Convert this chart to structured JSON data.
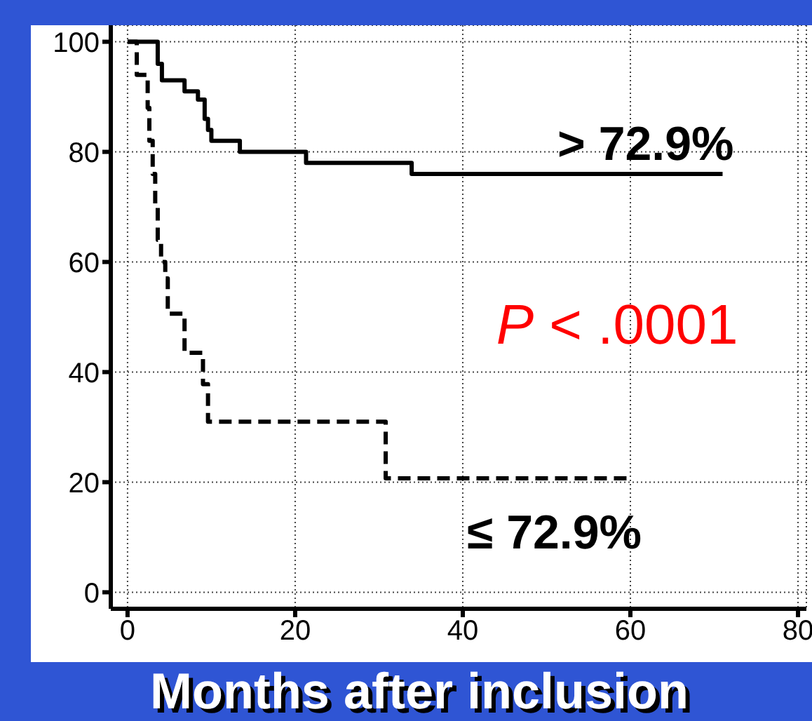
{
  "chart_data": {
    "type": "step",
    "xlabel": "Months after inclusion",
    "annotations": [
      "P < .0001"
    ],
    "xlim": [
      -2,
      81
    ],
    "ylim": [
      -3,
      103
    ],
    "xticks": [
      0,
      20,
      40,
      60,
      80
    ],
    "yticks": [
      0,
      20,
      40,
      60,
      80,
      100
    ],
    "grid": true,
    "series": [
      {
        "name": "> 72.9%",
        "color": "#000000",
        "line_style": "solid",
        "x": [
          0,
          3.6,
          4.1,
          6.8,
          8.4,
          9.2,
          9.6,
          10,
          13.4,
          21.3,
          33.9,
          71
        ],
        "values": [
          100,
          96,
          93,
          91,
          89.5,
          86,
          84,
          82,
          80,
          78,
          76,
          76
        ]
      },
      {
        "name": "≤ 72.9%",
        "color": "#000000",
        "line_style": "dashed",
        "x": [
          0,
          1.1,
          2.4,
          2.6,
          3.0,
          3.3,
          3.6,
          4.0,
          4.5,
          4.8,
          6.8,
          9.0,
          9.6,
          11.6,
          30.8,
          60
        ],
        "values": [
          100,
          94,
          88,
          82,
          76,
          70,
          64,
          60,
          57,
          50.6,
          43.5,
          37.8,
          31,
          31,
          20.7,
          20.7
        ]
      }
    ]
  }
}
